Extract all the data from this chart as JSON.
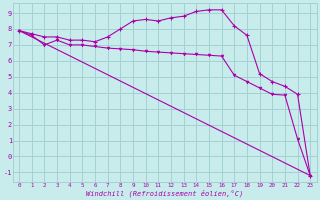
{
  "xlabel": "Windchill (Refroidissement éolien,°C)",
  "background_color": "#c8ecec",
  "grid_color": "#9ecece",
  "line_color": "#aa00aa",
  "x_ticks": [
    0,
    1,
    2,
    3,
    4,
    5,
    6,
    7,
    8,
    9,
    10,
    11,
    12,
    13,
    14,
    15,
    16,
    17,
    18,
    19,
    20,
    21,
    22,
    23
  ],
  "y_ticks": [
    -1,
    0,
    1,
    2,
    3,
    4,
    5,
    6,
    7,
    8,
    9
  ],
  "xlim": [
    -0.5,
    23.5
  ],
  "ylim": [
    -1.6,
    9.6
  ],
  "straight_line_x": [
    0,
    23
  ],
  "straight_line_y": [
    7.9,
    -1.2
  ],
  "curved_line_x": [
    0,
    1,
    2,
    3,
    4,
    5,
    6,
    7,
    8,
    9,
    10,
    11,
    12,
    13,
    14,
    15,
    16,
    17,
    18,
    19,
    20,
    21,
    22,
    23
  ],
  "curved_line_y": [
    7.9,
    7.7,
    7.5,
    7.5,
    7.3,
    7.3,
    7.2,
    7.5,
    8.0,
    8.5,
    8.6,
    8.5,
    8.7,
    8.8,
    9.1,
    9.2,
    9.2,
    8.2,
    7.6,
    5.2,
    4.7,
    4.4,
    3.9,
    -1.2
  ],
  "mid_line_x": [
    0,
    1,
    2,
    3,
    4,
    5,
    6,
    7,
    8,
    9,
    10,
    11,
    12,
    13,
    14,
    15,
    16,
    17,
    18,
    19,
    20,
    21,
    22,
    23
  ],
  "mid_line_y": [
    7.9,
    7.6,
    7.0,
    7.3,
    7.0,
    7.0,
    6.9,
    6.8,
    6.75,
    6.7,
    6.6,
    6.55,
    6.5,
    6.45,
    6.4,
    6.35,
    6.3,
    5.1,
    4.7,
    4.3,
    3.9,
    3.85,
    1.1,
    -1.2
  ]
}
